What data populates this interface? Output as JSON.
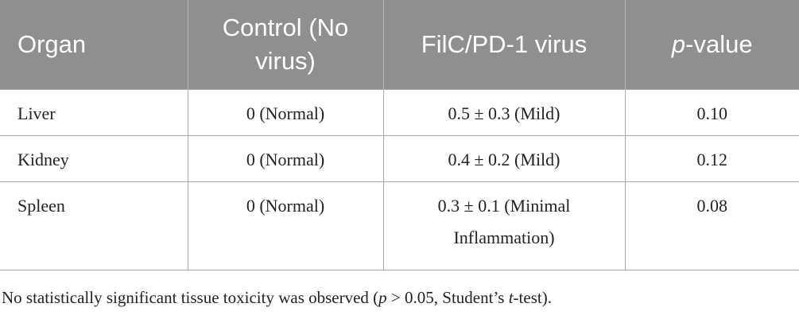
{
  "table": {
    "headers": {
      "organ": "Organ",
      "control": "Control (No virus)",
      "filc": "FilC/PD-1 virus",
      "pvalue_prefix": "p",
      "pvalue_suffix": "-value"
    },
    "rows": [
      {
        "organ": "Liver",
        "control": "0 (Normal)",
        "filc": "0.5 ± 0.3 (Mild)",
        "p": "0.10"
      },
      {
        "organ": "Kidney",
        "control": "0 (Normal)",
        "filc": "0.4 ± 0.2 (Mild)",
        "p": "0.12"
      },
      {
        "organ": "Spleen",
        "control": "0 (Normal)",
        "filc": "0.3 ± 0.1 (Minimal Inflammation)",
        "p": "0.08"
      }
    ]
  },
  "footnote": {
    "part1": "No statistically significant tissue toxicity was observed (",
    "p_italic": "p",
    "part2": " > 0.05, Student’s ",
    "t_italic": "t",
    "part3": "-test)."
  }
}
